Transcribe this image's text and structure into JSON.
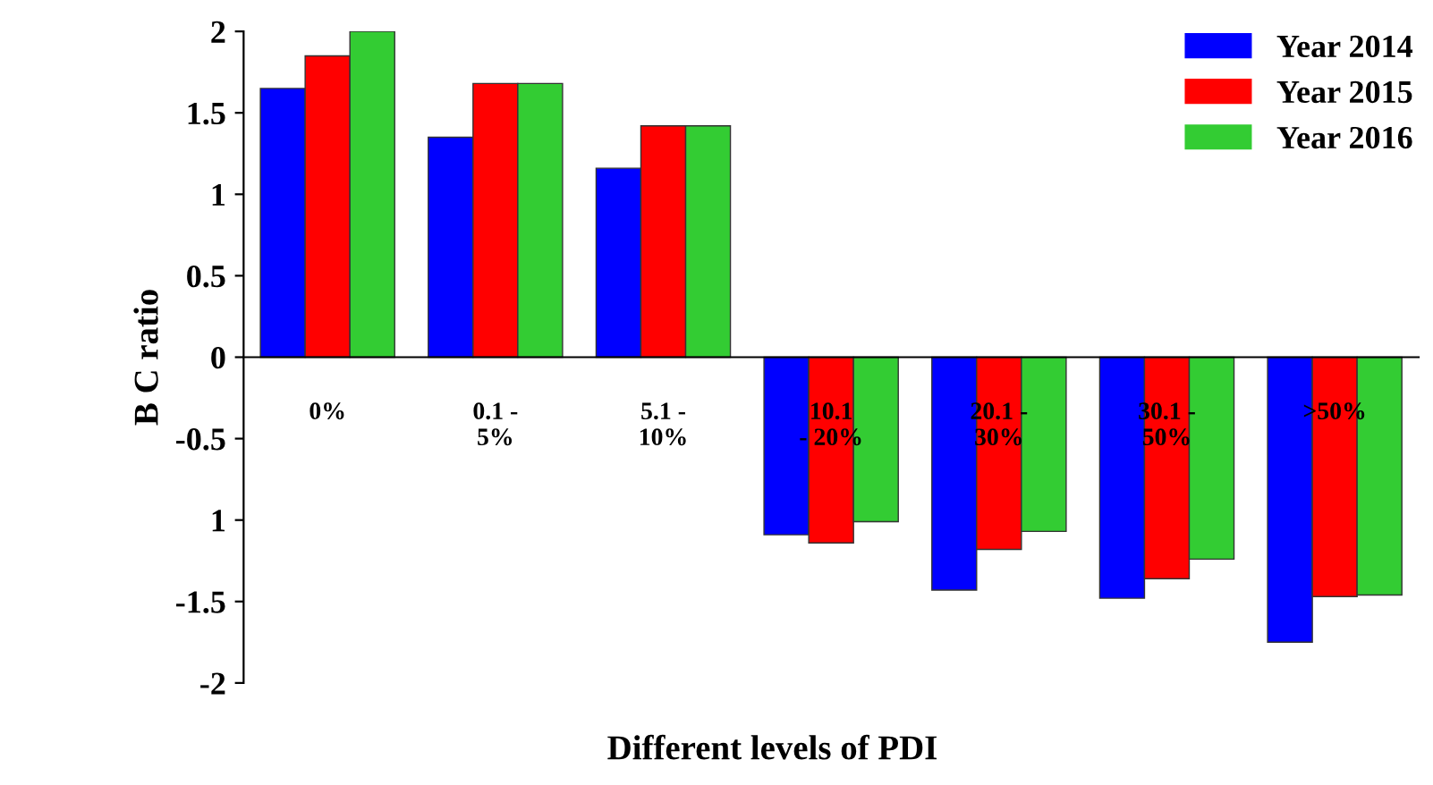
{
  "chart_data": {
    "type": "bar",
    "xlabel": "Different levels of PDI",
    "ylabel": "B C ratio",
    "categories": [
      "0%",
      "0.1 -\n5%",
      "5.1 -\n10%",
      "10.1\n- 20%",
      "20.1 -\n30%",
      "30.1 -\n50%",
      ">50%"
    ],
    "series": [
      {
        "name": "Year 2014",
        "color": "#0000ff",
        "values": [
          1.65,
          1.35,
          1.16,
          -1.09,
          -1.43,
          -1.48,
          -1.75
        ]
      },
      {
        "name": "Year 2015",
        "color": "#ff0000",
        "values": [
          1.85,
          1.68,
          1.42,
          -1.14,
          -1.18,
          -1.36,
          -1.47
        ]
      },
      {
        "name": "Year 2016",
        "color": "#33cc33",
        "values": [
          2.0,
          1.68,
          1.42,
          -1.01,
          -1.07,
          -1.24,
          -1.46
        ]
      }
    ],
    "ylim": [
      -2,
      2
    ],
    "yticks": [
      -2,
      -1.5,
      {
        "value": -1,
        "label": "1"
      },
      -0.5,
      0,
      0.5,
      1,
      1.5,
      2
    ],
    "legend": "top right",
    "grid": false
  }
}
